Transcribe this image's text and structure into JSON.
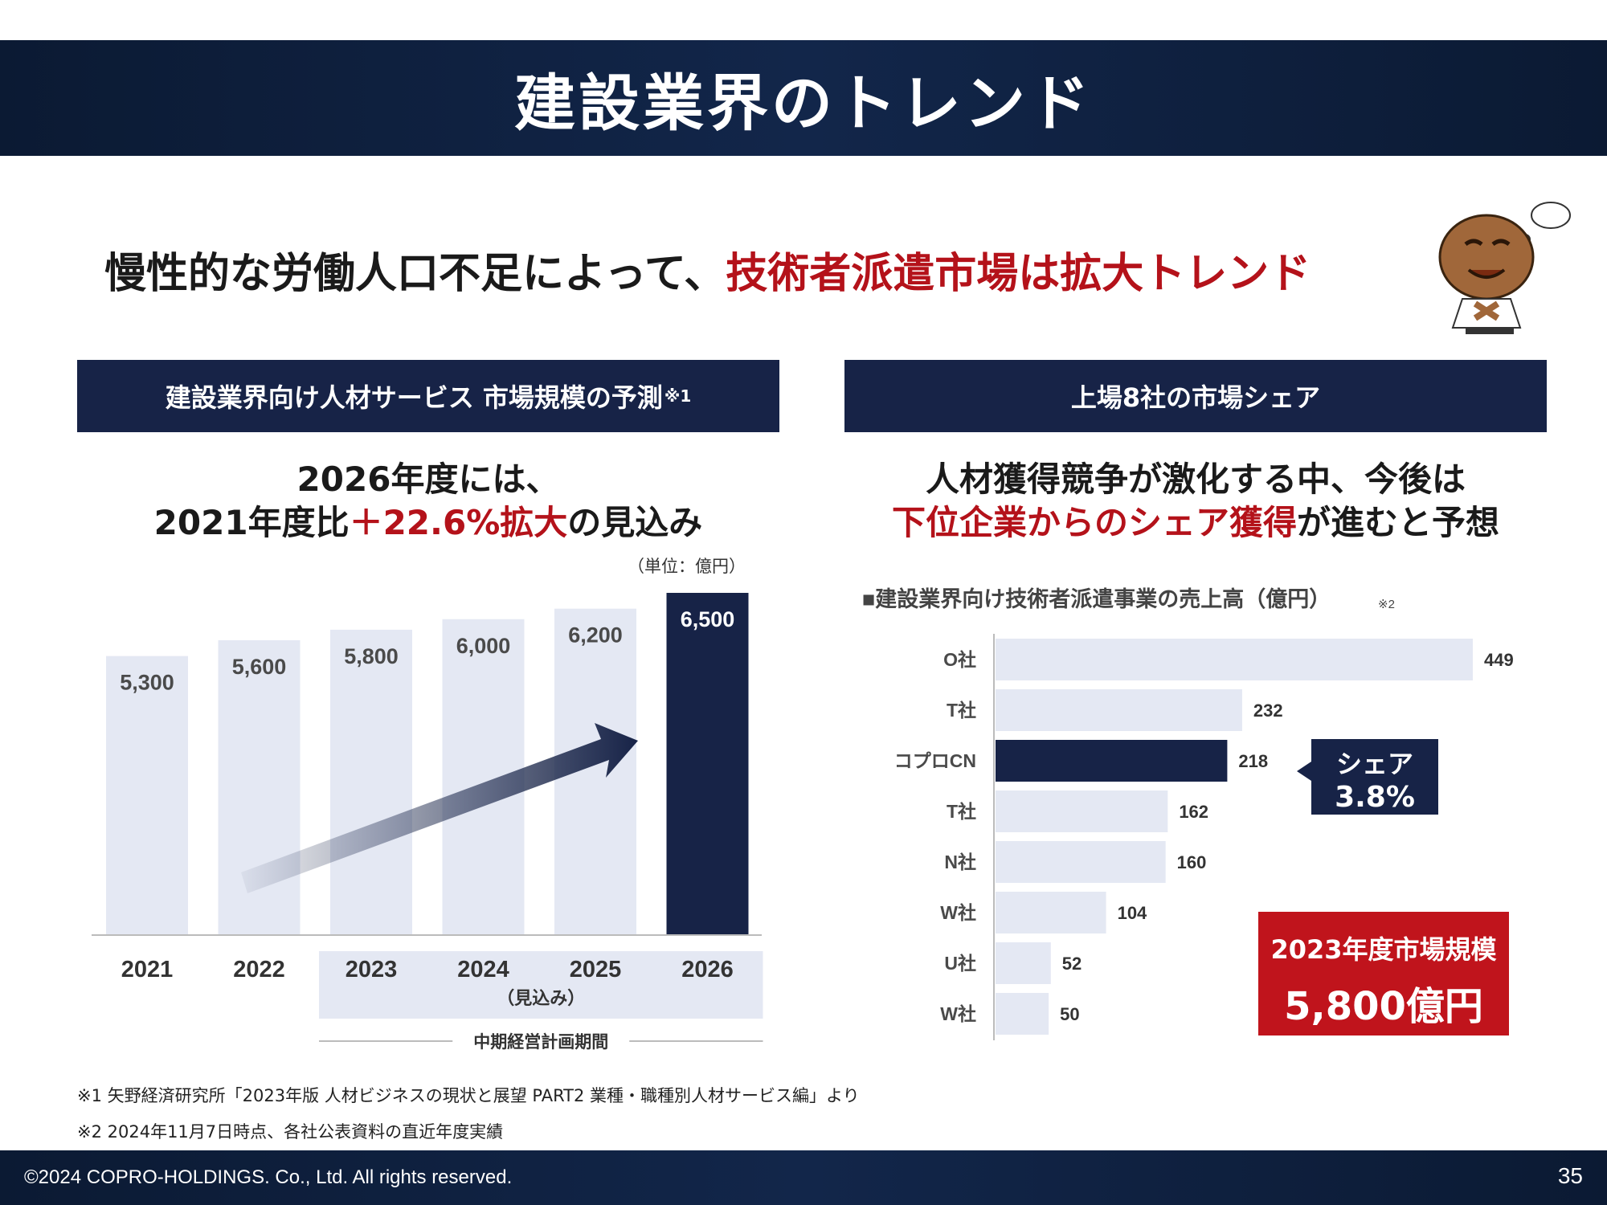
{
  "slide": {
    "title": "建設業界のトレンド",
    "headline_prefix": "慢性的な労働人口不足によって、",
    "headline_highlight": "技術者派遣市場は拡大トレンド",
    "page_number": "35",
    "copyright": "©2024 COPRO-HOLDINGS. Co., Ltd. All rights reserved."
  },
  "left_panel": {
    "header": "建設業界向け人材サービス 市場規模の予測",
    "header_note": "※1",
    "lead_line1": "2026年度には、",
    "lead_line2_prefix": "2021年度比",
    "lead_line2_highlight": "＋22.6%拡大",
    "lead_line2_suffix": "の見込み"
  },
  "right_panel": {
    "header": "上場8社の市場シェア",
    "lead_line1": "人材獲得競争が激化する中、今後は",
    "lead_line2_highlight": "下位企業からのシェア獲得",
    "lead_line2_suffix": "が進むと予想",
    "callout_line1": "シェア",
    "callout_line2": "3.8%",
    "market_box_line1": "2023年度市場規模",
    "market_box_line2": "5,800億円"
  },
  "footnotes": {
    "note1": "※1 矢野経済研究所「2023年版 人材ビジネスの現状と展望 PART2 業種・職種別人材サービス編」より",
    "note2": "※2 2024年11月7日時点、各社公表資料の直近年度実績"
  },
  "colors": {
    "navy": "#172347",
    "bar_light": "#e4e8f3",
    "red": "#b4121a",
    "label_gray": "#4a4a4a"
  },
  "chart_data": [
    {
      "type": "bar",
      "unit_label": "（単位：億円）",
      "categories": [
        "2021",
        "2022",
        "2023",
        "2024",
        "2025",
        "2026"
      ],
      "values": [
        5300,
        5600,
        5800,
        6000,
        6200,
        6500
      ],
      "value_labels": [
        "5,300",
        "5,600",
        "5,800",
        "6,000",
        "6,200",
        "6,500"
      ],
      "highlight_index": 5,
      "forecast_label": "（見込み）",
      "period_label": "中期経営計画期間",
      "period_range": [
        "2023",
        "2026"
      ],
      "trend_arrow": true
    },
    {
      "type": "bar",
      "orientation": "horizontal",
      "title": "■建設業界向け技術者派遣事業の売上高（億円）",
      "title_note": "※2",
      "categories": [
        "O社",
        "T社",
        "コプロCN",
        "T社",
        "N社",
        "W社",
        "U社",
        "W社"
      ],
      "values": [
        449,
        232,
        218,
        162,
        160,
        104,
        52,
        50
      ],
      "highlight_index": 2
    }
  ]
}
